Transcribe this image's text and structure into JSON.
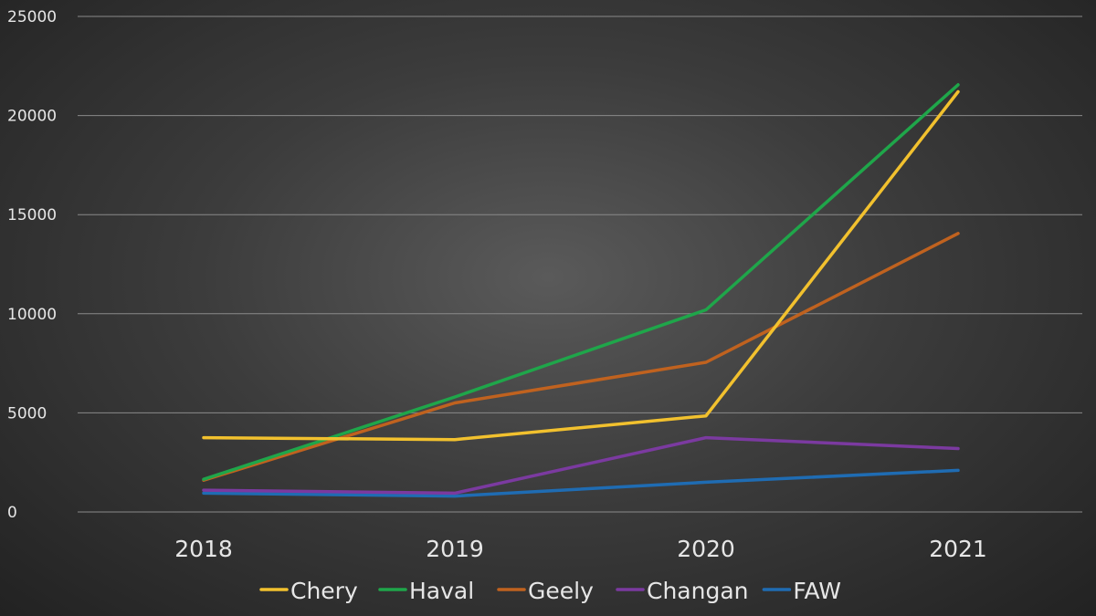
{
  "chart_data": {
    "type": "line",
    "title": "",
    "xlabel": "",
    "ylabel": "",
    "categories": [
      "2018",
      "2019",
      "2020",
      "2021"
    ],
    "ylim": [
      0,
      25000
    ],
    "yticks": [
      0,
      5000,
      10000,
      15000,
      20000,
      25000
    ],
    "ytick_labels": [
      "0",
      "5000",
      "10000",
      "15000",
      "20000",
      "25000"
    ],
    "grid": true,
    "legend_position": "bottom",
    "series": [
      {
        "name": "Chery",
        "color": "#f2c12e",
        "values": [
          3750,
          3650,
          4850,
          21200
        ]
      },
      {
        "name": "Haval",
        "color": "#1fa64a",
        "values": [
          1650,
          5800,
          10200,
          21550
        ]
      },
      {
        "name": "Geely",
        "color": "#c0621f",
        "values": [
          1600,
          5500,
          7550,
          14050
        ]
      },
      {
        "name": "Changan",
        "color": "#7b3aa0",
        "values": [
          1100,
          950,
          3750,
          3200
        ]
      },
      {
        "name": "FAW",
        "color": "#1f6cb3",
        "values": [
          950,
          800,
          1500,
          2100
        ]
      }
    ]
  }
}
